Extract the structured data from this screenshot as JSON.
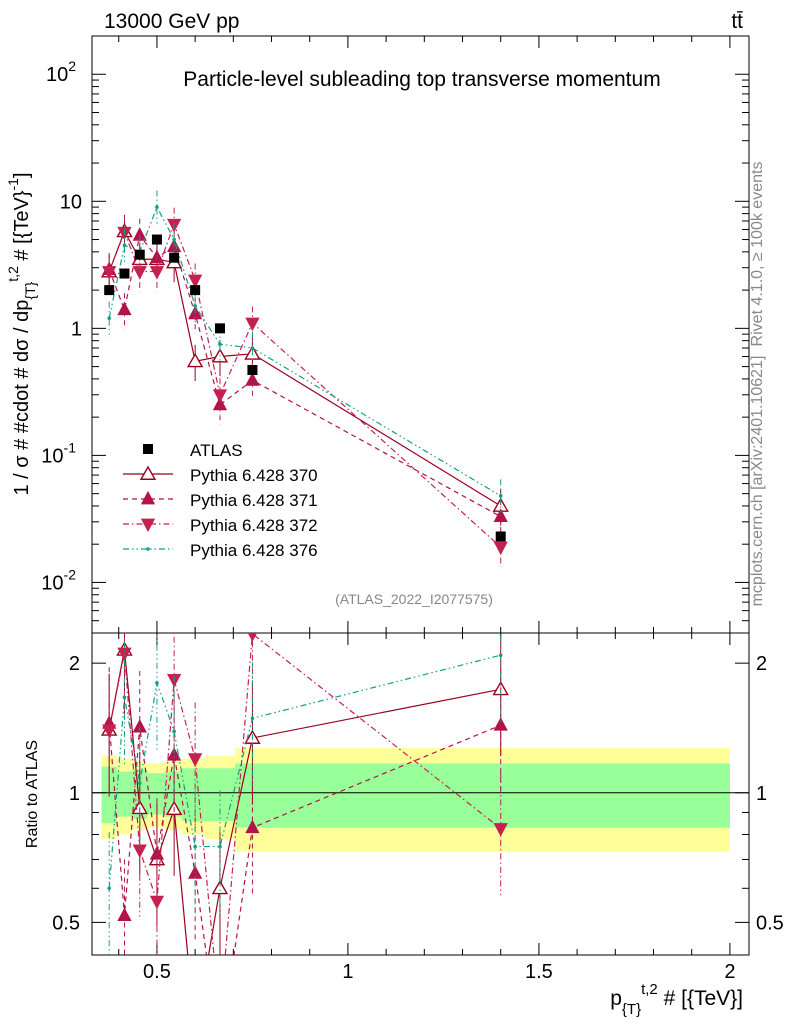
{
  "header": {
    "energy_label": "13000 GeV pp",
    "process_label": "tt̄",
    "title": "Particle-level subleading top transverse momentum",
    "ref_label": "(ATLAS_2022_I2077575)",
    "side_rivet": "Rivet 4.1.0, ≥ 100k events",
    "side_mcplots": "mcplots.cern.ch [arXiv:2401.10621]"
  },
  "chart_data": {
    "type": "scatter",
    "xlabel": "p_{T}^{t,2} # [{TeV}]",
    "ylabel": "1 / σ # #cdot # dσ / dp_{T}^{t,2} # [{TeV}^{-1}]",
    "ratio_ylabel": "Ratio to ATLAS",
    "xlim": [
      0.33,
      2.05
    ],
    "ylim": [
      0.004,
      200
    ],
    "ratio_ylim": [
      0.42,
      2.35
    ],
    "x_ticks": [
      "0.5",
      "1",
      "1.5",
      "2"
    ],
    "y_ticks": [
      "10^-2",
      "10^-1",
      "1",
      "10",
      "10^2"
    ],
    "ratio_ticks": [
      "0.5",
      "1",
      "2"
    ],
    "bin_edges": [
      0.355,
      0.395,
      0.435,
      0.475,
      0.52,
      0.565,
      0.625,
      0.705,
      0.8,
      2.0
    ],
    "data": {
      "name": "ATLAS",
      "x": [
        0.375,
        0.415,
        0.455,
        0.5,
        0.545,
        0.6,
        0.665,
        0.75,
        1.4
      ],
      "y": [
        2.0,
        2.7,
        3.8,
        5.0,
        3.6,
        2.0,
        1.0,
        0.47,
        0.023
      ],
      "band_inner": [
        0.15,
        0.12,
        0.13,
        0.11,
        0.12,
        0.14,
        0.14,
        0.17,
        0.17
      ],
      "band_outer": [
        0.22,
        0.2,
        0.18,
        0.17,
        0.18,
        0.2,
        0.22,
        0.27,
        0.27
      ]
    },
    "series": [
      {
        "name": "Pythia 6.428 370",
        "color": "#99001a",
        "style": "solid",
        "marker": "open-triangle-up",
        "y": [
          2.8,
          5.8,
          3.5,
          3.5,
          3.3,
          0.55,
          0.6,
          0.63,
          0.04
        ]
      },
      {
        "name": "Pythia 6.428 371",
        "color": "#b3124a",
        "style": "dashed",
        "marker": "triangle-up",
        "y": [
          2.9,
          1.4,
          5.4,
          3.6,
          4.4,
          1.3,
          0.25,
          0.39,
          0.033
        ]
      },
      {
        "name": "Pythia 6.428 372",
        "color": "#c42050",
        "style": "dashdot",
        "marker": "triangle-down",
        "y": [
          2.8,
          5.7,
          2.8,
          2.8,
          6.6,
          2.4,
          0.3,
          1.1,
          0.019
        ]
      },
      {
        "name": "Pythia 6.428 376",
        "color": "#14a085",
        "style": "dashdotdot",
        "marker": "dot",
        "y": [
          1.2,
          4.5,
          4.0,
          9.0,
          5.0,
          1.5,
          0.75,
          0.7,
          0.048
        ]
      }
    ]
  }
}
